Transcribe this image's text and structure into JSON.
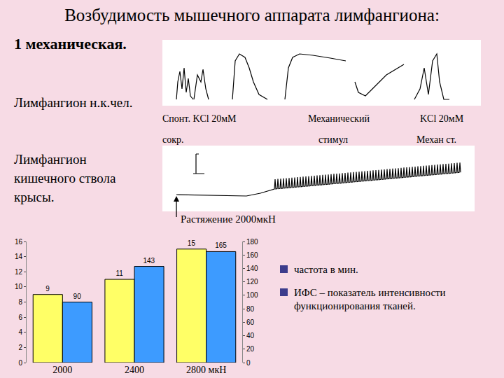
{
  "slide": {
    "title": "Возбудимость мышечного аппарата лимфангиона:",
    "subtitle": "1 механическая.",
    "human_label": "Лимфангион н.к.чел.",
    "rat_label": [
      "Лимфангион",
      "кишечного ствола",
      "крысы."
    ],
    "captions": [
      {
        "line1": "Спонт.  KCl 20мМ",
        "line2": "сокр."
      },
      {
        "line1": "Механический",
        "line2": "стимул"
      },
      {
        "line1": "KCl 20мМ",
        "line2": "Механ ст."
      }
    ],
    "stretch_label": "Растяжение 2000мкН"
  },
  "chart_data": {
    "type": "bar",
    "categories": [
      "2000",
      "2400",
      "2800 мкН"
    ],
    "series": [
      {
        "name": "частота в мин.",
        "color": "#ffff66",
        "values": [
          9,
          11,
          15
        ]
      },
      {
        "name": "ИФС – показатель интенсивности функционирования тканей.",
        "color": "#3d9bff",
        "values": [
          90,
          143,
          165
        ],
        "axis": "y2"
      }
    ],
    "ylim": [
      0,
      16
    ],
    "yticks": [
      0,
      2,
      4,
      6,
      8,
      10,
      12,
      14,
      16
    ],
    "y2lim": [
      0,
      180
    ],
    "y2ticks": [
      0,
      20,
      40,
      60,
      80,
      100,
      120,
      140,
      160,
      180
    ],
    "data_labels": true,
    "grid": false
  }
}
